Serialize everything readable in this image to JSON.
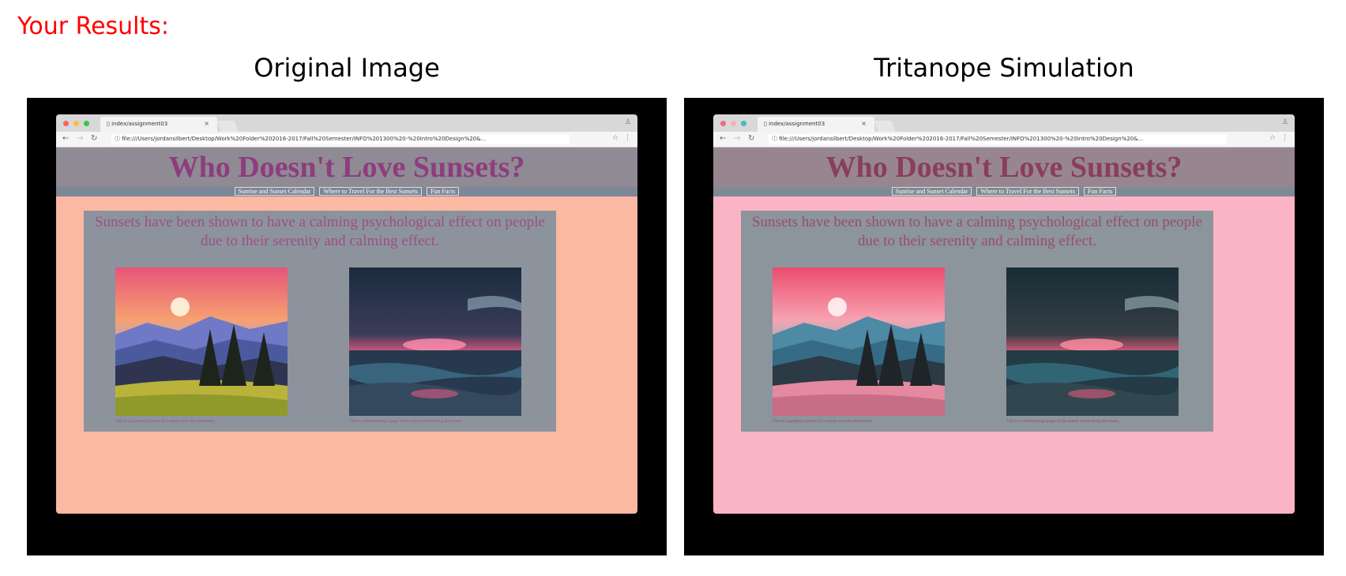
{
  "results_heading": "Your Results:",
  "panels": [
    {
      "title": "Original Image",
      "colors": {
        "header_bg": "#8f8a94",
        "header_text": "#8d3d7e",
        "nav_bg": "#7c8798",
        "body_bg": "#fbb8a3",
        "box_bg": "#8d939c",
        "intro_text": "#9a4f88",
        "caption_text": "#8e4f86"
      }
    },
    {
      "title": "Tritanope Simulation",
      "colors": {
        "header_bg": "#97868f",
        "header_text": "#893e5a",
        "nav_bg": "#7e8a92",
        "body_bg": "#fbb4c6",
        "box_bg": "#8c949c",
        "intro_text": "#9a4e66",
        "caption_text": "#8e4d66"
      }
    }
  ],
  "browser": {
    "tab_title": "index/assignment03",
    "tab_close": "×",
    "url": "file:///Users/jordansilbert/Desktop/Work%20Folder%202016-2017/Fall%20Semester/INFO%201300%20-%20Intro%20Design%20&..."
  },
  "site": {
    "title": "Who Doesn't Love Sunsets?",
    "nav": [
      "Sunrise and Sunset Calendar",
      "Where to Travel For the Best Sunsets",
      "Fun Facts"
    ],
    "intro": "Sunsets have been shown to have a calming psychological effect on people due to their serenity and calming effect.",
    "captions": [
      "This is a gorgeous picture of a sunset over the mountains.",
      "This is a breathtaking image of the sunset overlooking the ocean."
    ]
  },
  "icons": {
    "back": "back-arrow-icon",
    "forward": "forward-arrow-icon",
    "reload": "reload-icon",
    "page": "page-icon",
    "star": "star-icon",
    "menu": "menu-icon",
    "profile": "profile-icon"
  }
}
